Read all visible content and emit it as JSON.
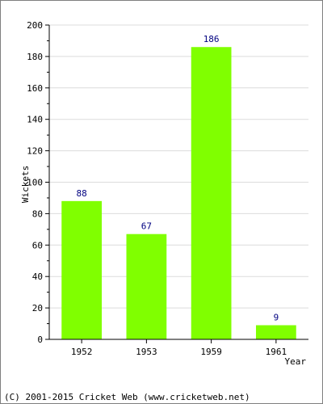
{
  "chart_data": {
    "type": "bar",
    "categories": [
      "1952",
      "1953",
      "1959",
      "1961"
    ],
    "values": [
      88,
      67,
      186,
      9
    ],
    "xlabel": "Year",
    "ylabel": "Wickets",
    "ylim": [
      0,
      200
    ],
    "yticks": [
      0,
      20,
      40,
      60,
      80,
      100,
      120,
      140,
      160,
      180,
      200
    ],
    "grid": true,
    "bar_color": "#80ff00",
    "label_color": "#000080"
  },
  "footer": {
    "copyright": "(C) 2001-2015 Cricket Web (www.cricketweb.net)"
  }
}
